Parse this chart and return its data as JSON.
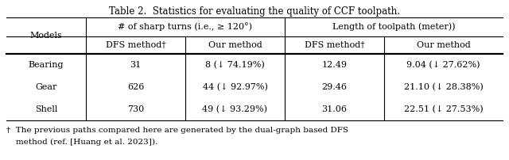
{
  "title": "Table 2.  Statistics for evaluating the quality of CCF toolpath.",
  "col_groups": [
    {
      "label": "# of sharp turns (i.e., ≥ 120°)"
    },
    {
      "label": "Length of toolpath (meter))"
    }
  ],
  "headers": [
    "Models",
    "DFS method†",
    "Our method",
    "DFS method†",
    "Our method"
  ],
  "rows": [
    [
      "Bearing",
      "31",
      "8 (↓ 74.19%)",
      "12.49",
      "9.04 (↓ 27.62%)"
    ],
    [
      "Gear",
      "626",
      "44 (↓ 92.97%)",
      "29.46",
      "21.10 (↓ 28.38%)"
    ],
    [
      "Shell",
      "730",
      "49 (↓ 93.29%)",
      "31.06",
      "22.51 (↓ 27.53%)"
    ]
  ],
  "footnote_line1": "†  The previous paths compared here are generated by the dual-graph based DFS",
  "footnote_line2": "method (ref. [Huang et al. 2023]).",
  "bg_color": "#ffffff",
  "text_color": "#000000",
  "font_size": 8.0,
  "title_font_size": 8.5
}
